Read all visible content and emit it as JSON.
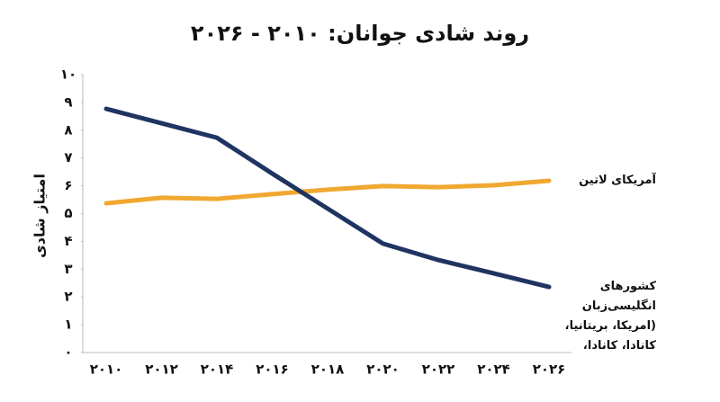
{
  "chart_data": {
    "type": "line",
    "title": "روند شادی جوانان: ۲۰۱۰ - ۲۰۲۶",
    "y_label": "امتیاز شادی",
    "categories": [
      "۲۰۱۰",
      "۲۰۱۲",
      "۲۰۱۴",
      "۲۰۱۶",
      "۲۰۱۸",
      "۲۰۲۰",
      "۲۰۲۲",
      "۲۰۲۴",
      "۲۰۲۶"
    ],
    "series": [
      {
        "name": "آمریکای لاتین",
        "color": "#f0a830",
        "values": [
          5.37,
          5.57,
          5.53,
          5.7,
          5.86,
          5.99,
          5.95,
          6.02,
          6.18
        ]
      },
      {
        "name": "کشورهای انگلیسی‌زبان (امریکا، بریتانیا، کانادا، کانادا، استرالیا)",
        "color": "#1f3461",
        "values": [
          8.77,
          8.25,
          7.73,
          6.44,
          5.18,
          3.92,
          3.33,
          2.85,
          2.36
        ]
      }
    ],
    "ylim": [
      0,
      10
    ],
    "yticks": [
      {
        "value": 0,
        "label": "۰"
      },
      {
        "value": 1,
        "label": "۱"
      },
      {
        "value": 2,
        "label": "۲"
      },
      {
        "value": 3,
        "label": "۳"
      },
      {
        "value": 4,
        "label": "۴"
      },
      {
        "value": 5,
        "label": "۵"
      },
      {
        "value": 6,
        "label": "۶"
      },
      {
        "value": 7,
        "label": "۷"
      },
      {
        "value": 8,
        "label": "۸"
      },
      {
        "value": 9,
        "label": "۹"
      },
      {
        "value": 10,
        "label": "۱۰"
      }
    ],
    "grid": false
  }
}
